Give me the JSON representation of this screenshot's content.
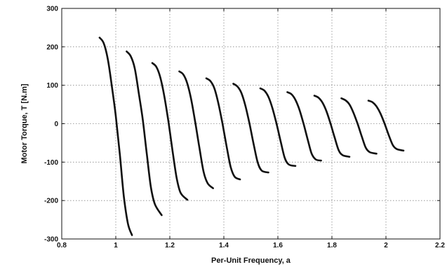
{
  "chart_data": {
    "type": "line",
    "title": "",
    "xlabel": "Per-Unit Frequency, a",
    "ylabel": "Motor Torque, T [N.m]",
    "xlim": [
      0.8,
      2.2
    ],
    "ylim": [
      -300,
      300
    ],
    "xticks": [
      0.8,
      1,
      1.2,
      1.4,
      1.6,
      1.8,
      2,
      2.2
    ],
    "yticks": [
      -300,
      -200,
      -100,
      0,
      100,
      200,
      300
    ],
    "xtick_labels": [
      "0.8",
      "1",
      "1.2",
      "1.4",
      "1.6",
      "1.8",
      "2",
      "2.2"
    ],
    "ytick_labels": [
      "-300",
      "-200",
      "-100",
      "0",
      "100",
      "200",
      "300"
    ],
    "grid": true,
    "grid_style": "dotted",
    "line_color": "#111111",
    "series": [
      {
        "x": [
          0.94,
          0.955,
          0.97,
          0.985,
          1.0,
          1.015,
          1.03,
          1.045,
          1.06
        ],
        "y": [
          224,
          210,
          170,
          100,
          20,
          -80,
          -190,
          -260,
          -290
        ]
      },
      {
        "x": [
          1.04,
          1.055,
          1.07,
          1.085,
          1.1,
          1.115,
          1.13,
          1.145,
          1.17
        ],
        "y": [
          188,
          176,
          145,
          80,
          10,
          -80,
          -165,
          -210,
          -238
        ]
      },
      {
        "x": [
          1.135,
          1.15,
          1.165,
          1.18,
          1.195,
          1.21,
          1.225,
          1.24,
          1.265
        ],
        "y": [
          158,
          148,
          120,
          70,
          5,
          -70,
          -140,
          -180,
          -198
        ]
      },
      {
        "x": [
          1.235,
          1.25,
          1.265,
          1.28,
          1.295,
          1.31,
          1.325,
          1.34,
          1.36
        ],
        "y": [
          136,
          128,
          104,
          60,
          0,
          -65,
          -125,
          -155,
          -168
        ]
      },
      {
        "x": [
          1.335,
          1.35,
          1.365,
          1.38,
          1.395,
          1.41,
          1.425,
          1.44,
          1.46
        ],
        "y": [
          118,
          111,
          92,
          52,
          0,
          -58,
          -112,
          -138,
          -145
        ]
      },
      {
        "x": [
          1.435,
          1.45,
          1.465,
          1.48,
          1.495,
          1.51,
          1.525,
          1.54,
          1.565
        ],
        "y": [
          104,
          97,
          80,
          46,
          0,
          -52,
          -100,
          -122,
          -127
        ]
      },
      {
        "x": [
          1.535,
          1.55,
          1.565,
          1.58,
          1.595,
          1.61,
          1.625,
          1.64,
          1.665
        ],
        "y": [
          92,
          86,
          70,
          40,
          0,
          -45,
          -88,
          -106,
          -110
        ]
      },
      {
        "x": [
          1.635,
          1.65,
          1.665,
          1.68,
          1.695,
          1.71,
          1.725,
          1.74,
          1.76
        ],
        "y": [
          82,
          77,
          62,
          36,
          0,
          -40,
          -78,
          -93,
          -96
        ]
      },
      {
        "x": [
          1.735,
          1.75,
          1.765,
          1.78,
          1.795,
          1.81,
          1.825,
          1.84,
          1.865
        ],
        "y": [
          73,
          68,
          55,
          32,
          0,
          -36,
          -69,
          -82,
          -86
        ]
      },
      {
        "x": [
          1.835,
          1.85,
          1.865,
          1.88,
          1.895,
          1.91,
          1.925,
          1.94,
          1.965
        ],
        "y": [
          66,
          61,
          50,
          28,
          0,
          -32,
          -62,
          -74,
          -78
        ]
      },
      {
        "x": [
          1.935,
          1.95,
          1.965,
          1.98,
          1.995,
          2.01,
          2.025,
          2.04,
          2.065
        ],
        "y": [
          60,
          56,
          45,
          26,
          0,
          -29,
          -55,
          -66,
          -70
        ]
      }
    ]
  }
}
